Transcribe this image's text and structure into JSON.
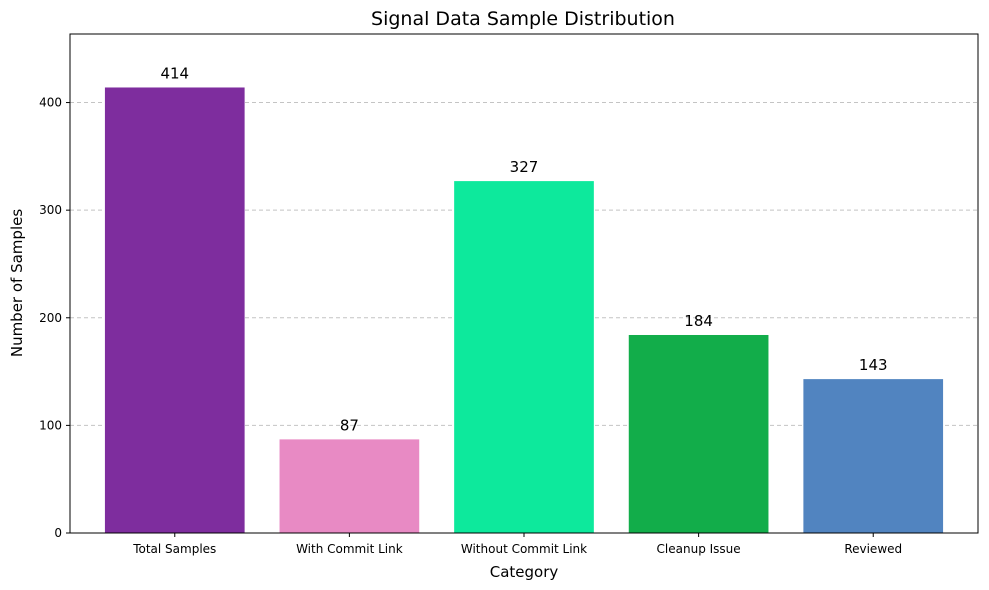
{
  "chart_data": {
    "type": "bar",
    "title": "Signal Data Sample Distribution",
    "xlabel": "Category",
    "ylabel": "Number of Samples",
    "categories": [
      "Total Samples",
      "With Commit Link",
      "Without Commit Link",
      "Cleanup Issue",
      "Reviewed"
    ],
    "values": [
      414,
      87,
      327,
      184,
      143
    ],
    "colors": [
      "#7e2d9e",
      "#e88ac4",
      "#0de99c",
      "#12ad4a",
      "#5184c0"
    ],
    "ylim": [
      0,
      463.7
    ],
    "yticks": [
      0,
      100,
      200,
      300,
      400
    ],
    "grid": "horizontal-dashed",
    "legend": "none"
  }
}
